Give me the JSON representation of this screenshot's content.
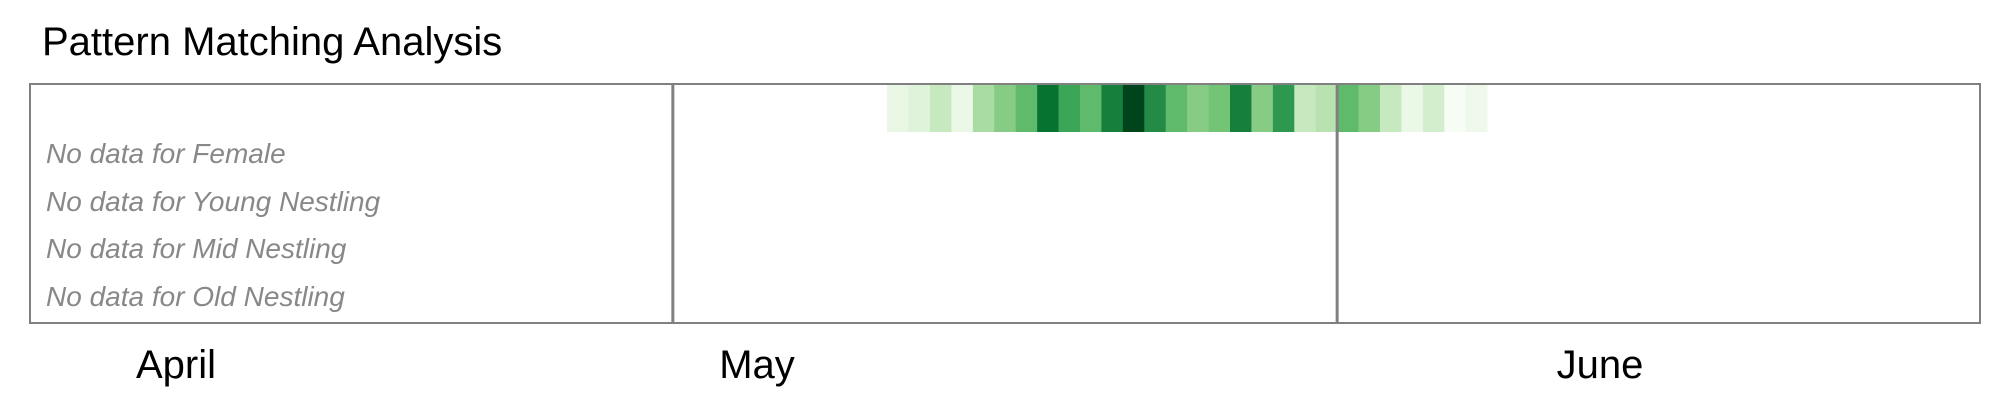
{
  "chart_data": {
    "type": "heatmap",
    "title": "Pattern Matching Analysis",
    "x_axis": {
      "kind": "date",
      "range": [
        "2024-04-01",
        "2024-06-30"
      ],
      "month_labels": [
        "April",
        "May",
        "June"
      ],
      "month_boundaries": [
        "2024-05-01",
        "2024-06-01"
      ]
    },
    "rows": [
      {
        "name": "",
        "colormap": "Greens",
        "dates": [
          "2024-05-11",
          "2024-05-12",
          "2024-05-13",
          "2024-05-14",
          "2024-05-15",
          "2024-05-16",
          "2024-05-17",
          "2024-05-18",
          "2024-05-19",
          "2024-05-20",
          "2024-05-21",
          "2024-05-22",
          "2024-05-23",
          "2024-05-24",
          "2024-05-25",
          "2024-05-26",
          "2024-05-27",
          "2024-05-28",
          "2024-05-29",
          "2024-05-30",
          "2024-05-31",
          "2024-06-01",
          "2024-06-02",
          "2024-06-03",
          "2024-06-04",
          "2024-06-05",
          "2024-06-06",
          "2024-06-07"
        ],
        "values": [
          0.1,
          0.15,
          0.25,
          0.08,
          0.35,
          0.45,
          0.55,
          0.85,
          0.65,
          0.55,
          0.8,
          1.0,
          0.75,
          0.55,
          0.45,
          0.5,
          0.8,
          0.45,
          0.7,
          0.25,
          0.3,
          0.55,
          0.45,
          0.25,
          0.08,
          0.2,
          0.0,
          0.06
        ]
      }
    ],
    "empty_rows": [
      "No data for Female",
      "No data for Young Nestling",
      "No data for Mid Nestling",
      "No data for Old Nestling"
    ],
    "grid": false,
    "legend": "none"
  }
}
